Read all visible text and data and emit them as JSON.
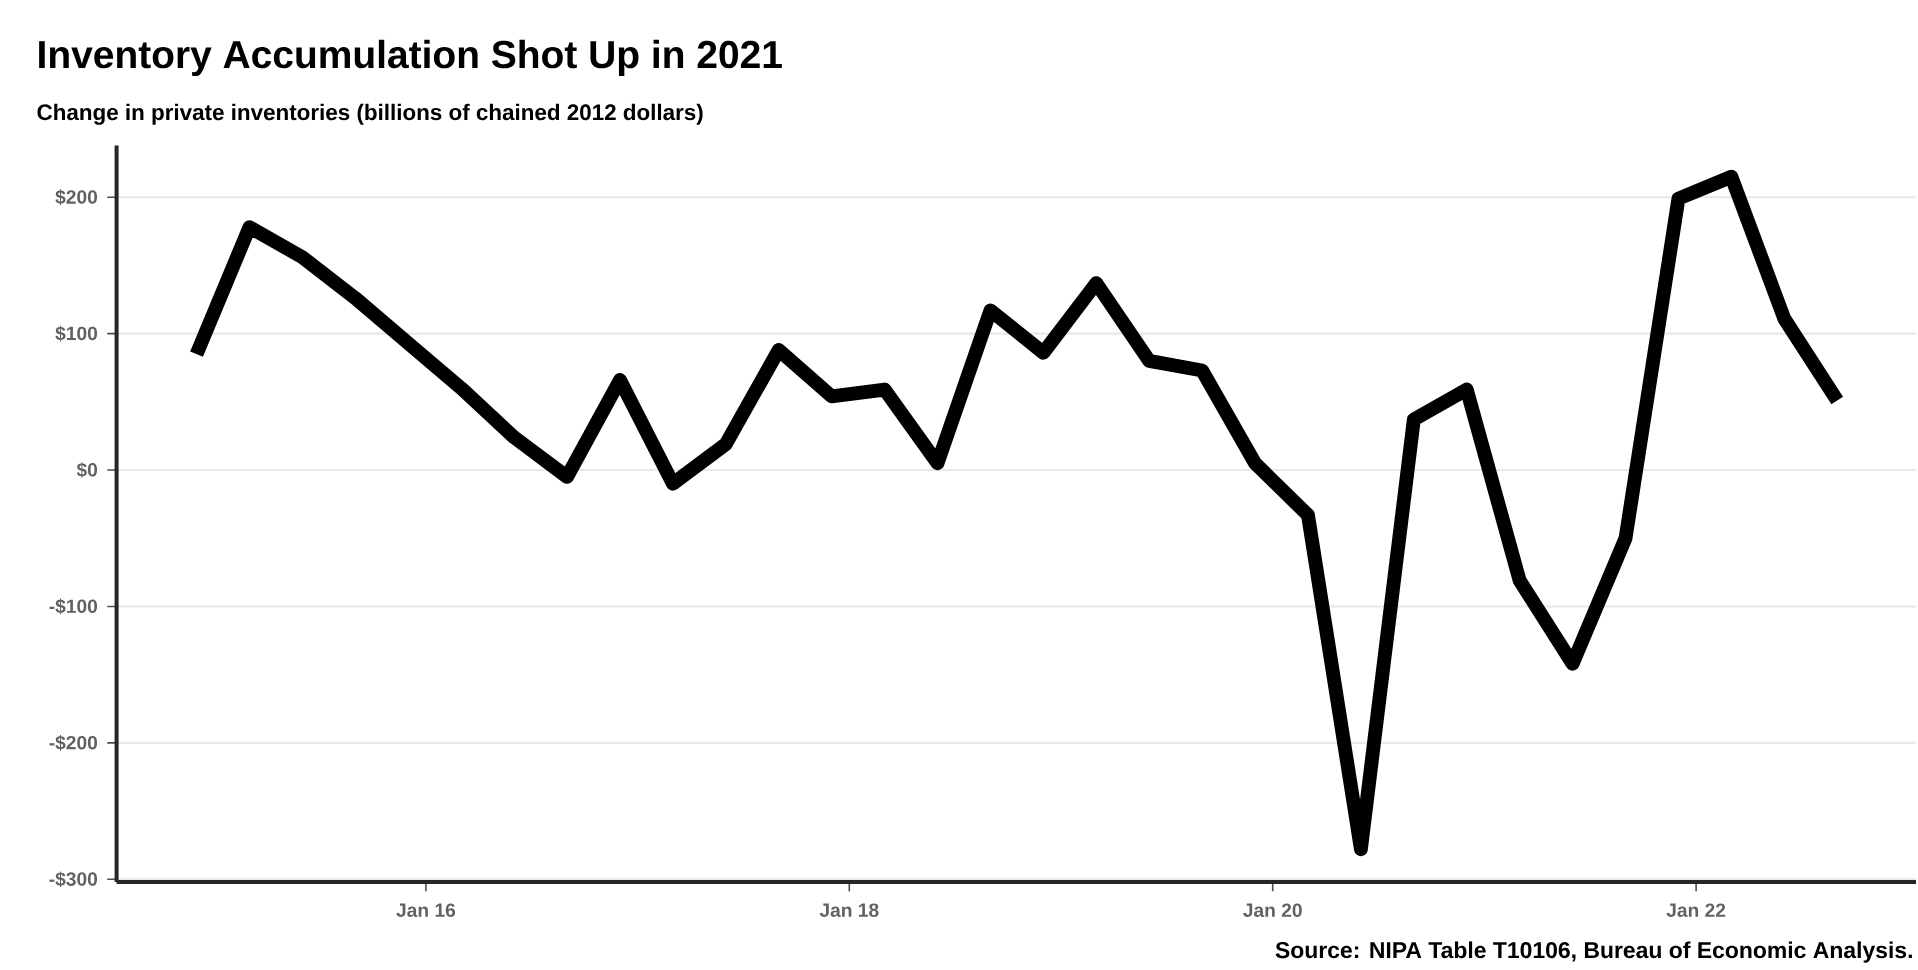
{
  "chart_data": {
    "type": "line",
    "title": "Inventory Accumulation Shot Up in 2021",
    "subtitle": "Change in private inventories (billions of chained 2012 dollars)",
    "annotations": [
      "Source: NIPA Table T10106, Bureau of Economic Analysis."
    ],
    "x": [
      "2014-12",
      "2015-03",
      "2015-06",
      "2015-09",
      "2015-12",
      "2016-03",
      "2016-06",
      "2016-09",
      "2016-12",
      "2017-03",
      "2017-06",
      "2017-09",
      "2017-12",
      "2018-03",
      "2018-06",
      "2018-09",
      "2018-12",
      "2019-03",
      "2019-06",
      "2019-09",
      "2019-12",
      "2020-03",
      "2020-06",
      "2020-09",
      "2020-12",
      "2021-03",
      "2021-06",
      "2021-09",
      "2021-12",
      "2022-03",
      "2022-06",
      "2022-09"
    ],
    "series": [
      {
        "color": "#000000",
        "values": [
          85,
          178,
          156,
          126,
          93,
          60,
          24,
          -5,
          66,
          -10,
          19,
          88,
          54,
          59,
          5,
          117,
          86,
          137,
          80,
          73,
          5,
          -33,
          -278,
          37,
          59,
          -81,
          -142,
          -50,
          199,
          215,
          111,
          51
        ]
      }
    ],
    "xlim": [
      "2014-07-15",
      "2023-01-15"
    ],
    "ylim": [
      -302,
      238
    ],
    "xticks": [
      {
        "value": "2016-01",
        "label": "Jan 16"
      },
      {
        "value": "2018-01",
        "label": "Jan 18"
      },
      {
        "value": "2020-01",
        "label": "Jan 20"
      },
      {
        "value": "2022-01",
        "label": "Jan 22"
      }
    ],
    "yticks": [
      {
        "value": -300,
        "label": "-$300"
      },
      {
        "value": -200,
        "label": "-$200"
      },
      {
        "value": -100,
        "label": "-$100"
      },
      {
        "value": 0,
        "label": "$0"
      },
      {
        "value": 100,
        "label": "$100"
      },
      {
        "value": 200,
        "label": "$200"
      }
    ],
    "grid": "y"
  }
}
